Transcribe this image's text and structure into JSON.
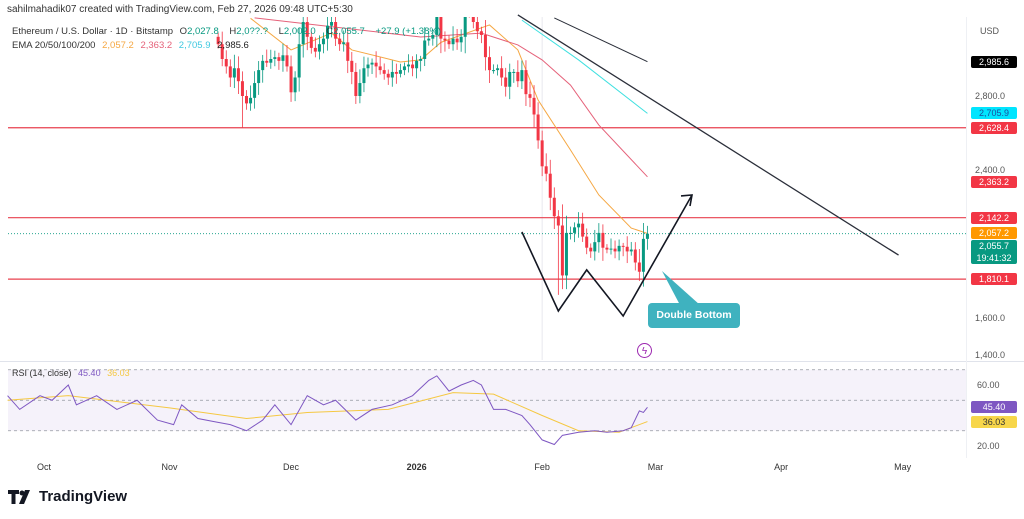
{
  "header": {
    "credit": "sahilmahadik07 created with TradingView.com, Feb 27, 2026 09:48 UTC+5:30",
    "symbol": "Ethereum / U.S. Dollar · 1D · Bitstamp",
    "ohlc": {
      "o_label": "O",
      "o": "2,027.8",
      "h_label": "H",
      "h": "2,0??.?",
      "l_label": "L",
      "l": "2,002.0",
      "c_label": "C",
      "c": "2,055.7",
      "change": "+27.9 (+1.38%)"
    },
    "ema_label": "EMA 20/50/100/200",
    "ema_values": [
      "2,057.2",
      "2,363.2",
      "2,705.9",
      "2,985.6"
    ]
  },
  "rsi_legend": {
    "label": "RSI (14, close)",
    "value": "45.40",
    "ma": "36.03"
  },
  "brand": "TradingView",
  "price_axis": {
    "currency": "USD",
    "ticks": [
      "2,800.0",
      "2,400.0",
      "1,600.0",
      "1,400.0"
    ],
    "rsi_ticks": [
      "60.00",
      "20.00"
    ]
  },
  "price_labels": [
    {
      "text": "2,985.6",
      "value": 2985.6,
      "bg": "#000000"
    },
    {
      "text": "2,705.9",
      "value": 2705.9,
      "bg": "#00e5ff",
      "fg": "#1a4fa0"
    },
    {
      "text": "2,628.4",
      "value": 2628.4,
      "bg": "#f23645"
    },
    {
      "text": "2,363.2",
      "value": 2363.2,
      "bg": "#f23645"
    },
    {
      "text": "2,142.2",
      "value": 2142.2,
      "bg": "#f23645"
    },
    {
      "text": "2,057.2",
      "value": 2057.2,
      "bg": "#ff9800"
    },
    {
      "text": "2,055.7",
      "sub": "19:41:32",
      "value": 2055.7,
      "bg": "#089981"
    },
    {
      "text": "1,810.1",
      "value": 1810.1,
      "bg": "#f23645"
    }
  ],
  "rsi_labels": [
    {
      "text": "45.40",
      "value": 45.4,
      "bg": "#7e57c2"
    },
    {
      "text": "36.03",
      "value": 36.03,
      "bg": "#f7d64a",
      "fg": "#333"
    }
  ],
  "time_axis": [
    "Oct",
    "Nov",
    "Dec",
    "2026",
    "Feb",
    "Mar",
    "Apr",
    "May"
  ],
  "annotation": {
    "text": "Double Bottom",
    "bg": "#3fb2bf"
  },
  "colors": {
    "up": "#089981",
    "down": "#f23645",
    "ema20": "#f5a742",
    "ema50": "#e5627a",
    "ema100": "#3fe0e0",
    "ema200": "#2a2e39",
    "rsi": "#7e57c2",
    "rsi_ma": "#f5c842",
    "level": "#e8414f"
  },
  "chart_data": {
    "type": "candlestick",
    "ylim": [
      1330,
      3240
    ],
    "rsi_ylim": [
      12,
      78
    ],
    "dates": [
      "2025-11-13",
      "2025-11-14",
      "2025-11-15",
      "2025-11-16",
      "2025-11-17",
      "2025-11-18",
      "2025-11-19",
      "2025-11-20",
      "2025-11-21",
      "2025-11-22",
      "2025-11-23",
      "2025-11-24",
      "2025-11-25",
      "2025-11-26",
      "2025-11-27",
      "2025-11-28",
      "2025-11-29",
      "2025-11-30",
      "2025-12-01",
      "2025-12-02",
      "2025-12-03",
      "2025-12-04",
      "2025-12-05",
      "2025-12-06",
      "2025-12-07",
      "2025-12-08",
      "2025-12-09",
      "2025-12-10",
      "2025-12-11",
      "2025-12-12",
      "2025-12-13",
      "2025-12-14",
      "2025-12-15",
      "2025-12-16",
      "2025-12-17",
      "2025-12-18",
      "2025-12-19",
      "2025-12-20",
      "2025-12-21",
      "2025-12-22",
      "2025-12-23",
      "2025-12-24",
      "2025-12-25",
      "2025-12-26",
      "2025-12-27",
      "2025-12-28",
      "2025-12-29",
      "2025-12-30",
      "2025-12-31",
      "2026-01-01",
      "2026-01-02",
      "2026-01-03",
      "2026-01-04",
      "2026-01-05",
      "2026-01-06",
      "2026-01-07",
      "2026-01-08",
      "2026-01-09",
      "2026-01-10",
      "2026-01-11",
      "2026-01-12",
      "2026-01-13",
      "2026-01-14",
      "2026-01-15",
      "2026-01-16",
      "2026-01-17",
      "2026-01-18",
      "2026-01-19",
      "2026-01-20",
      "2026-01-21",
      "2026-01-22",
      "2026-01-23",
      "2026-01-24",
      "2026-01-25",
      "2026-01-26",
      "2026-01-27",
      "2026-01-28",
      "2026-01-29",
      "2026-01-30",
      "2026-01-31",
      "2026-02-01",
      "2026-02-02",
      "2026-02-03",
      "2026-02-04",
      "2026-02-05",
      "2026-02-06",
      "2026-02-07",
      "2026-02-08",
      "2026-02-09",
      "2026-02-10",
      "2026-02-11",
      "2026-02-12",
      "2026-02-13",
      "2026-02-14",
      "2026-02-15",
      "2026-02-16",
      "2026-02-17",
      "2026-02-18",
      "2026-02-19",
      "2026-02-20",
      "2026-02-21",
      "2026-02-22",
      "2026-02-23",
      "2026-02-24",
      "2026-02-25",
      "2026-02-26",
      "2026-02-27"
    ],
    "close": [
      3080,
      3000,
      2960,
      2900,
      2950,
      2880,
      2800,
      2760,
      2790,
      2870,
      2940,
      2990,
      2980,
      3000,
      3010,
      2990,
      3020,
      2960,
      2820,
      2900,
      3080,
      3200,
      3120,
      3060,
      3040,
      3080,
      3110,
      3180,
      3200,
      3110,
      3080,
      3090,
      2990,
      2930,
      2800,
      2870,
      2950,
      2970,
      2980,
      2960,
      2940,
      2920,
      2900,
      2930,
      2920,
      2940,
      2960,
      2970,
      2950,
      2990,
      3000,
      3100,
      3110,
      3130,
      3250,
      3110,
      3100,
      3080,
      3110,
      3090,
      3120,
      3300,
      3250,
      3200,
      3150,
      3130,
      3010,
      2940,
      2940,
      2950,
      2900,
      2850,
      2930,
      2930,
      2880,
      2940,
      2810,
      2790,
      2700,
      2560,
      2420,
      2380,
      2250,
      2150,
      2100,
      1830,
      2060,
      2060,
      2090,
      2110,
      2040,
      1980,
      1960,
      2010,
      2060,
      1980,
      1970,
      1975,
      1960,
      1990,
      1985,
      1960,
      1970,
      1900,
      1850,
      2027.8,
      2055.7
    ],
    "notable_lows": [
      [
        "2025-11-19",
        2628
      ],
      [
        "2026-02-05",
        1725
      ],
      [
        "2026-02-25",
        1800
      ]
    ],
    "ema": {
      "EMA20": [
        [
          "2025-11-21",
          3220
        ],
        [
          "2025-12-01",
          3049
        ],
        [
          "2025-12-11",
          3140
        ],
        [
          "2025-12-16",
          3049
        ],
        [
          "2025-12-28",
          2984
        ],
        [
          "2026-01-02",
          2995
        ],
        [
          "2026-01-07",
          3090
        ],
        [
          "2026-01-19",
          3184
        ],
        [
          "2026-01-26",
          3049
        ],
        [
          "2026-01-31",
          2778
        ],
        [
          "2026-02-08",
          2508
        ],
        [
          "2026-02-15",
          2265
        ],
        [
          "2026-02-23",
          2086
        ],
        [
          "2026-02-27",
          2057.2
        ]
      ],
      "EMA50": [
        [
          "2025-11-22",
          3222
        ],
        [
          "2026-01-02",
          3119
        ],
        [
          "2026-01-17",
          3140
        ],
        [
          "2026-01-26",
          3076
        ],
        [
          "2026-02-01",
          2995
        ],
        [
          "2026-02-08",
          2859
        ],
        [
          "2026-02-15",
          2643
        ],
        [
          "2026-02-27",
          2363.2
        ]
      ],
      "EMA100": [
        [
          "2026-01-27",
          3210
        ],
        [
          "2026-02-10",
          2995
        ],
        [
          "2026-02-27",
          2705.9
        ]
      ],
      "EMA200": [
        [
          "2026-02-04",
          3222
        ],
        [
          "2026-02-27",
          2985.6
        ]
      ]
    },
    "levels": [
      2628.4,
      2142.2,
      1810.1
    ],
    "trendline": [
      [
        "2026-01-26",
        3238
      ],
      [
        "2026-04-30",
        1940
      ]
    ],
    "pattern_path": [
      [
        "2026-01-27",
        2065
      ],
      [
        "2026-02-05",
        1638
      ],
      [
        "2026-02-12",
        1860
      ],
      [
        "2026-02-21",
        1611
      ],
      [
        "2026-03-10",
        2265
      ]
    ],
    "rsi": [
      [
        "2025-09-22",
        53
      ],
      [
        "2025-09-25",
        44
      ],
      [
        "2025-09-30",
        53
      ],
      [
        "2025-10-03",
        50
      ],
      [
        "2025-10-07",
        60
      ],
      [
        "2025-10-09",
        47
      ],
      [
        "2025-10-14",
        53
      ],
      [
        "2025-10-19",
        44
      ],
      [
        "2025-10-24",
        50
      ],
      [
        "2025-10-29",
        37
      ],
      [
        "2025-11-02",
        34
      ],
      [
        "2025-11-04",
        47
      ],
      [
        "2025-11-08",
        38
      ],
      [
        "2025-11-12",
        36
      ],
      [
        "2025-11-16",
        34
      ],
      [
        "2025-11-20",
        30
      ],
      [
        "2025-11-24",
        37
      ],
      [
        "2025-11-27",
        47
      ],
      [
        "2025-12-01",
        34
      ],
      [
        "2025-12-05",
        53
      ],
      [
        "2025-12-09",
        47
      ],
      [
        "2025-12-12",
        50
      ],
      [
        "2025-12-17",
        37
      ],
      [
        "2025-12-21",
        44
      ],
      [
        "2025-12-26",
        47
      ],
      [
        "2025-12-31",
        53
      ],
      [
        "2026-01-04",
        63
      ],
      [
        "2026-01-06",
        66
      ],
      [
        "2026-01-09",
        56
      ],
      [
        "2026-01-12",
        60
      ],
      [
        "2026-01-15",
        63
      ],
      [
        "2026-01-17",
        60
      ],
      [
        "2026-01-20",
        44
      ],
      [
        "2026-01-23",
        44
      ],
      [
        "2026-01-27",
        40
      ],
      [
        "2026-01-29",
        34
      ],
      [
        "2026-02-01",
        24
      ],
      [
        "2026-02-04",
        21
      ],
      [
        "2026-02-06",
        27
      ],
      [
        "2026-02-10",
        29
      ],
      [
        "2026-02-14",
        30
      ],
      [
        "2026-02-17",
        29
      ],
      [
        "2026-02-21",
        30
      ],
      [
        "2026-02-23",
        32
      ],
      [
        "2026-02-25",
        43
      ],
      [
        "2026-02-26",
        42
      ],
      [
        "2026-02-27",
        45.4
      ]
    ],
    "rsi_ma": [
      [
        "2025-09-22",
        50
      ],
      [
        "2025-10-07",
        53
      ],
      [
        "2025-11-01",
        45
      ],
      [
        "2025-11-20",
        38
      ],
      [
        "2025-12-05",
        42
      ],
      [
        "2025-12-25",
        44
      ],
      [
        "2026-01-10",
        55
      ],
      [
        "2026-01-20",
        54
      ],
      [
        "2026-02-01",
        40
      ],
      [
        "2026-02-10",
        30
      ],
      [
        "2026-02-20",
        29
      ],
      [
        "2026-02-27",
        36.03
      ]
    ],
    "rsi_bands": [
      70,
      50,
      30
    ]
  }
}
